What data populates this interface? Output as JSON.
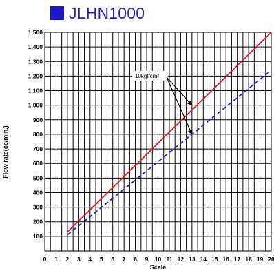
{
  "title": "JLHN1000",
  "colors": {
    "title_text": "#1f1fcf",
    "title_square": "#1a1acc",
    "grid": "#000000",
    "series_red": "#e81818",
    "series_blue": "#1a1ad6"
  },
  "chart_data": {
    "type": "line",
    "title": "JLHN1000",
    "xlabel": "Scale",
    "ylabel": "Flow rate(cc/min.)",
    "xlim": [
      0,
      20
    ],
    "ylim": [
      0,
      1500
    ],
    "grid": true,
    "x_ticks": [
      "0",
      "1",
      "2",
      "3",
      "4",
      "5",
      "6",
      "7",
      "8",
      "9",
      "10",
      "11",
      "12",
      "13",
      "14",
      "15",
      "16",
      "17",
      "18",
      "19",
      "20"
    ],
    "y_ticks": [
      "100",
      "200",
      "300",
      "400",
      "500",
      "600",
      "700",
      "800",
      "900",
      "1,000",
      "1,100",
      "1,200",
      "1,300",
      "1,400",
      "1,500"
    ],
    "series": [
      {
        "style": "solid",
        "color": "#e81818",
        "x": [
          2,
          20
        ],
        "y": [
          130,
          1500
        ]
      },
      {
        "style": "dashed",
        "color": "#1a1ad6",
        "x": [
          2,
          20
        ],
        "y": [
          110,
          1240
        ]
      }
    ],
    "annotations": [
      {
        "text": "10kgf/cm²",
        "arrows_to": [
          [
            13,
            1000
          ],
          [
            13,
            800
          ]
        ]
      }
    ]
  }
}
